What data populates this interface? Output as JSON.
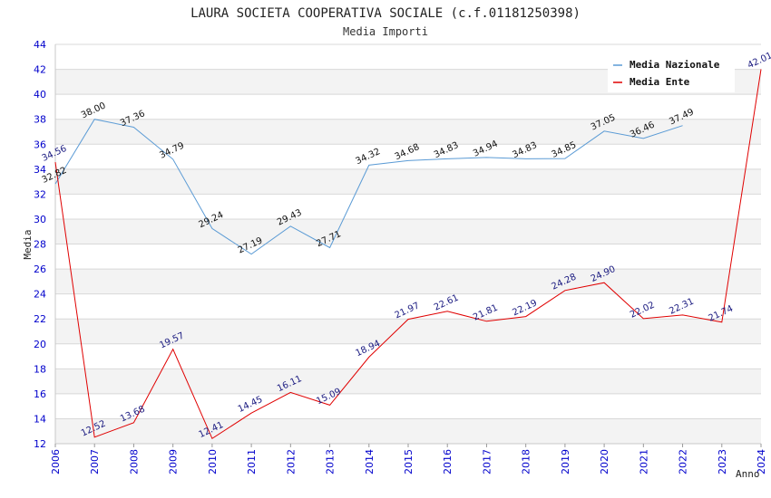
{
  "chart_data": {
    "type": "line",
    "title": "LAURA SOCIETA COOPERATIVA SOCIALE (c.f.01181250398)",
    "subtitle": "Media Importi",
    "xlabel": "Anno",
    "ylabel": "Media",
    "ylim": [
      12,
      44
    ],
    "yticks": [
      12,
      14,
      16,
      18,
      20,
      22,
      24,
      26,
      28,
      30,
      32,
      34,
      36,
      38,
      40,
      42,
      44
    ],
    "categories": [
      "2006",
      "2007",
      "2008",
      "2009",
      "2010",
      "2011",
      "2012",
      "2013",
      "2014",
      "2015",
      "2016",
      "2017",
      "2018",
      "2019",
      "2020",
      "2021",
      "2022",
      "2023",
      "2024"
    ],
    "legend_position": "top-right",
    "series": [
      {
        "name": "Media Nazionale",
        "color": "#5b9bd5",
        "values": [
          32.82,
          38.0,
          37.36,
          34.79,
          29.24,
          27.19,
          29.43,
          27.71,
          34.32,
          34.68,
          34.83,
          34.94,
          34.83,
          34.85,
          37.05,
          36.46,
          37.49,
          null,
          null
        ],
        "labels": [
          "32.82",
          "38.00",
          "37.36",
          "34.79",
          "29.24",
          "27.19",
          "29.43",
          "27.71",
          "34.32",
          "34.68",
          "34.83",
          "34.94",
          "34.83",
          "34.85",
          "37.05",
          "36.46",
          "37.49",
          null,
          null
        ]
      },
      {
        "name": "Media Ente",
        "color": "#e00000",
        "values": [
          34.56,
          12.52,
          13.68,
          19.57,
          12.41,
          14.45,
          16.11,
          15.09,
          18.94,
          21.97,
          22.61,
          21.81,
          22.19,
          24.28,
          24.9,
          22.02,
          22.31,
          21.74,
          42.01
        ],
        "labels": [
          "34.56",
          "12.52",
          "13.68",
          "19.57",
          "12.41",
          "14.45",
          "16.11",
          "15.09",
          "18.94",
          "21.97",
          "22.61",
          "21.81",
          "22.19",
          "24.28",
          "24.90",
          "22.02",
          "22.31",
          "21.74",
          "42.01"
        ]
      }
    ]
  }
}
